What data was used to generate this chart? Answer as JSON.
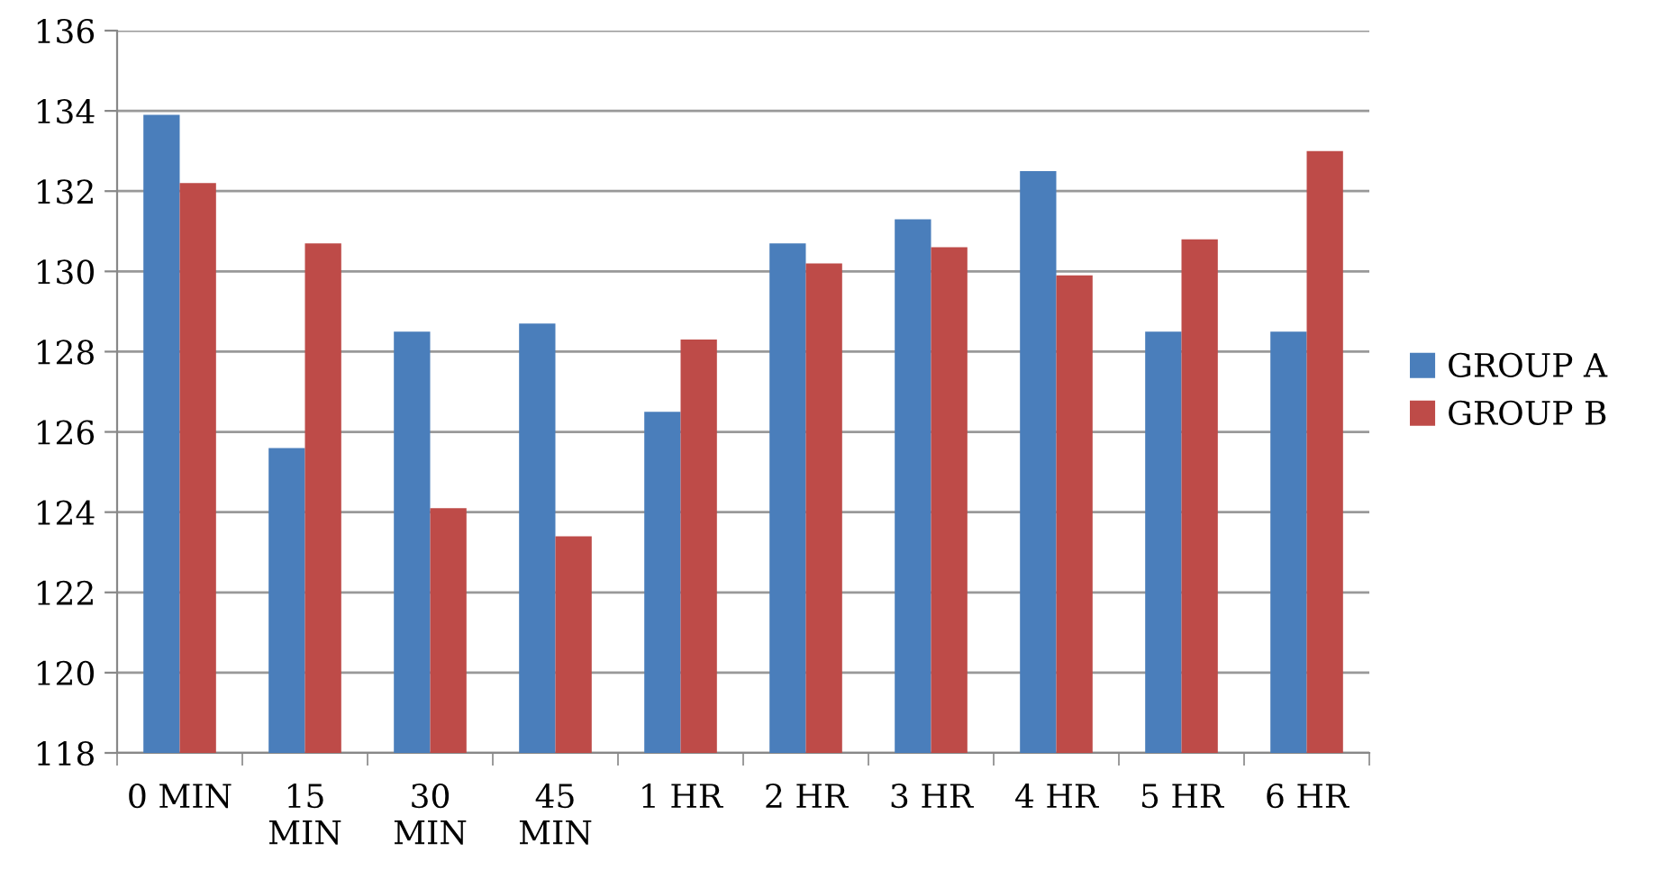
{
  "chart_data": {
    "type": "bar",
    "categories": [
      "0 MIN",
      "15 MIN",
      "30 MIN",
      "45 MIN",
      "1 HR",
      "2 HR",
      "3 HR",
      "4 HR",
      "5 HR",
      "6 HR"
    ],
    "series": [
      {
        "name": "GROUP A",
        "color": "#4a7ebb",
        "values": [
          133.9,
          125.6,
          128.5,
          128.7,
          126.5,
          130.7,
          131.3,
          132.5,
          128.5,
          128.5
        ]
      },
      {
        "name": "GROUP B",
        "color": "#be4b48",
        "values": [
          132.2,
          130.7,
          124.1,
          123.4,
          128.3,
          130.2,
          130.6,
          129.9,
          130.8,
          133.0
        ]
      }
    ],
    "ylim": [
      118,
      136
    ],
    "yticks": [
      118,
      120,
      122,
      124,
      126,
      128,
      130,
      132,
      134,
      136
    ],
    "grid": "y",
    "legend": "right"
  }
}
